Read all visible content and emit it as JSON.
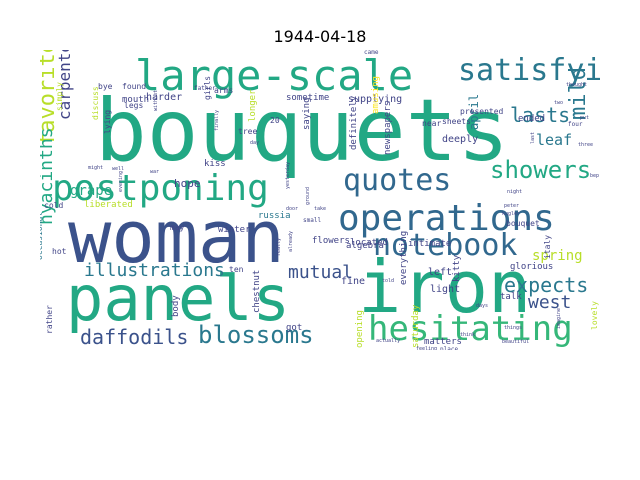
{
  "chart_data": {
    "type": "wordcloud",
    "title": "1944-04-18",
    "palette": [
      "#2a788e",
      "#22a884",
      "#414487",
      "#7ad151",
      "#440154",
      "#31688e",
      "#35b779",
      "#b8de29",
      "#fde725",
      "#3b528b"
    ],
    "words": [
      {
        "text": "bouquets",
        "weight": 100
      },
      {
        "text": "woman",
        "weight": 88
      },
      {
        "text": "panels",
        "weight": 86
      },
      {
        "text": "iron",
        "weight": 80
      },
      {
        "text": "large-scale",
        "weight": 62
      },
      {
        "text": "postponing",
        "weight": 52
      },
      {
        "text": "operations",
        "weight": 52
      },
      {
        "text": "hesitating",
        "weight": 48
      },
      {
        "text": "notebook",
        "weight": 44
      },
      {
        "text": "satisfying",
        "weight": 40
      },
      {
        "text": "quotes",
        "weight": 40
      },
      {
        "text": "blossoms",
        "weight": 36
      },
      {
        "text": "showers",
        "weight": 34
      },
      {
        "text": "favorite",
        "weight": 30
      },
      {
        "text": "daffodils",
        "weight": 30
      },
      {
        "text": "mild",
        "weight": 30
      },
      {
        "text": "illustrations",
        "weight": 28
      },
      {
        "text": "hyacinths",
        "weight": 28
      },
      {
        "text": "expects",
        "weight": 28
      },
      {
        "text": "lasts",
        "weight": 26
      },
      {
        "text": "mutual",
        "weight": 24
      },
      {
        "text": "carpenter",
        "weight": 24
      },
      {
        "text": "west",
        "weight": 24
      },
      {
        "text": "leaf",
        "weight": 20
      },
      {
        "text": "spring",
        "weight": 20
      },
      {
        "text": "grape",
        "weight": 18
      },
      {
        "text": "april",
        "weight": 18
      },
      {
        "text": "hope",
        "weight": 16
      },
      {
        "text": "harder",
        "weight": 16
      },
      {
        "text": "supplying",
        "weight": 16
      },
      {
        "text": "sometime",
        "weight": 15
      },
      {
        "text": "longer",
        "weight": 15
      },
      {
        "text": "mouth",
        "weight": 15
      },
      {
        "text": "flowers",
        "weight": 15
      },
      {
        "text": "located",
        "weight": 15
      },
      {
        "text": "intimate",
        "weight": 15
      },
      {
        "text": "deeply",
        "weight": 15
      },
      {
        "text": "definitely",
        "weight": 15
      },
      {
        "text": "newspapers",
        "weight": 15
      },
      {
        "text": "winter",
        "weight": 15
      },
      {
        "text": "russia",
        "weight": 15
      },
      {
        "text": "light",
        "weight": 15
      },
      {
        "text": "left",
        "weight": 15
      },
      {
        "text": "glorious",
        "weight": 15
      },
      {
        "text": "talk",
        "weight": 15
      },
      {
        "text": "fine",
        "weight": 15
      },
      {
        "text": "got",
        "weight": 15
      },
      {
        "text": "kiss",
        "weight": 15
      },
      {
        "text": "matters",
        "weight": 15
      },
      {
        "text": "body",
        "weight": 15
      },
      {
        "text": "ended",
        "weight": 15
      },
      {
        "text": "kitty",
        "weight": 15
      },
      {
        "text": "algebra",
        "weight": 15
      },
      {
        "text": "liberated",
        "weight": 15
      },
      {
        "text": "chestnut",
        "weight": 15
      },
      {
        "text": "tree",
        "weight": 14
      },
      {
        "text": "ten",
        "weight": 14
      },
      {
        "text": "bouquet",
        "weight": 14
      },
      {
        "text": "everything",
        "weight": 14
      },
      {
        "text": "opening",
        "weight": 14
      },
      {
        "text": "saturday",
        "weight": 14
      },
      {
        "text": "saying",
        "weight": 14
      },
      {
        "text": "amusing",
        "weight": 14
      },
      {
        "text": "near",
        "weight": 14
      },
      {
        "text": "sheets",
        "weight": 14
      },
      {
        "text": "presented",
        "weight": 14
      },
      {
        "text": "found",
        "weight": 13
      },
      {
        "text": "legs",
        "weight": 13
      },
      {
        "text": "arms",
        "weight": 13
      },
      {
        "text": "girls",
        "weight": 13
      },
      {
        "text": "lying",
        "weight": 13
      },
      {
        "text": "cold",
        "weight": 13
      },
      {
        "text": "hot",
        "weight": 13
      },
      {
        "text": "may",
        "weight": 13
      },
      {
        "text": "rather",
        "weight": 13
      },
      {
        "text": "feels",
        "weight": 13
      },
      {
        "text": "lovely",
        "weight": 13
      },
      {
        "text": "italy",
        "weight": 13
      },
      {
        "text": "bye",
        "weight": 12
      },
      {
        "text": "simply",
        "weight": 12
      },
      {
        "text": "discuss",
        "weight": 12
      },
      {
        "text": "occasional",
        "weight": 12
      },
      {
        "text": "father",
        "weight": 11
      },
      {
        "text": "came",
        "weight": 11
      },
      {
        "text": "thought",
        "weight": 11
      },
      {
        "text": "small",
        "weight": 11
      },
      {
        "text": "well",
        "weight": 11
      },
      {
        "text": "might",
        "weight": 10
      },
      {
        "text": "war",
        "weight": 10
      },
      {
        "text": "evening",
        "weight": 10
      },
      {
        "text": "finally",
        "weight": 10
      },
      {
        "text": "door",
        "weight": 10
      },
      {
        "text": "day",
        "weight": 10
      },
      {
        "text": "yesterday",
        "weight": 10
      },
      {
        "text": "ground",
        "weight": 10
      },
      {
        "text": "take",
        "weight": 10
      },
      {
        "text": "really",
        "weight": 10
      },
      {
        "text": "already",
        "weight": 10
      },
      {
        "text": "told",
        "weight": 10
      },
      {
        "text": "think",
        "weight": 10
      },
      {
        "text": "kugler",
        "weight": 10
      },
      {
        "text": "night",
        "weight": 10
      },
      {
        "text": "peter",
        "weight": 10
      },
      {
        "text": "days",
        "weight": 10
      },
      {
        "text": "place",
        "weight": 10
      },
      {
        "text": "actually",
        "weight": 10
      },
      {
        "text": "feeling",
        "weight": 10
      },
      {
        "text": "beautiful",
        "weight": 10
      },
      {
        "text": "things",
        "weight": 10
      },
      {
        "text": "imagine",
        "weight": 10
      },
      {
        "text": "last",
        "weight": 10
      },
      {
        "text": "four",
        "weight": 10
      },
      {
        "text": "three",
        "weight": 10
      },
      {
        "text": "put",
        "weight": 10
      },
      {
        "text": "two",
        "weight": 9
      },
      {
        "text": "bep",
        "weight": 9
      },
      {
        "text": "without",
        "weight": 9
      },
      {
        "text": "20",
        "weight": 12
      }
    ]
  }
}
